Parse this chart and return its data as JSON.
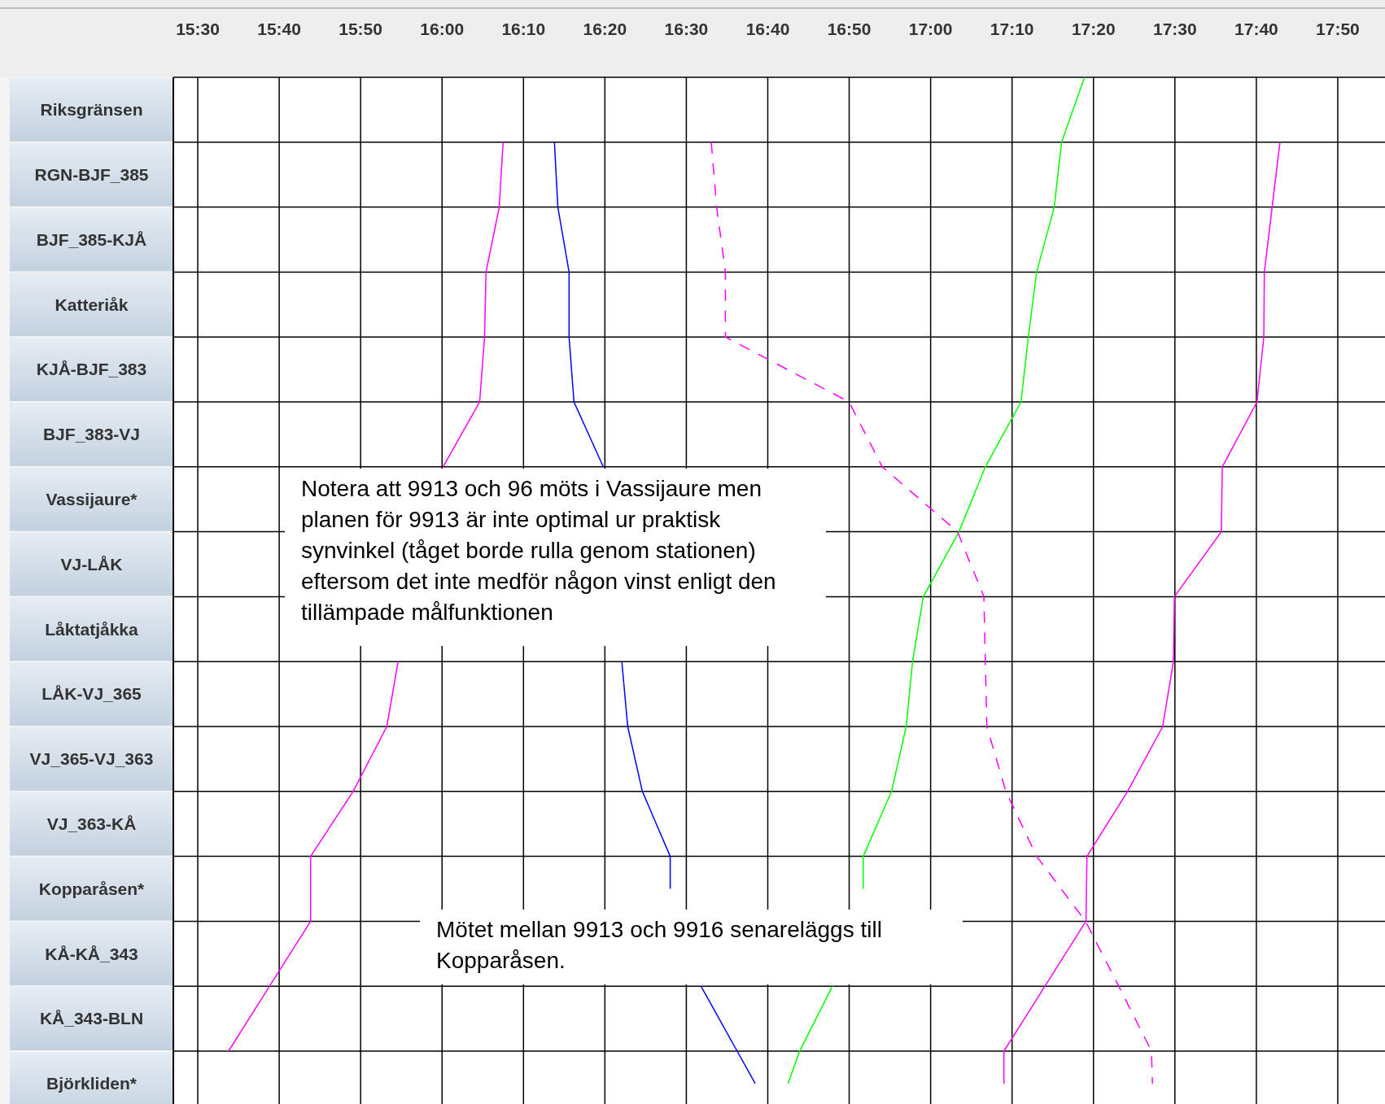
{
  "chart_data": {
    "type": "line",
    "orientation": "horizontal",
    "xlim": [
      15.45,
      17.93
    ],
    "xticks": [
      {
        "value": 15.5,
        "label": "15:30"
      },
      {
        "value": 15.6667,
        "label": "15:40"
      },
      {
        "value": 15.8333,
        "label": "15:50"
      },
      {
        "value": 16,
        "label": "16:00"
      },
      {
        "value": 16.1667,
        "label": "16:10"
      },
      {
        "value": 16.3333,
        "label": "16:20"
      },
      {
        "value": 16.5,
        "label": "16:30"
      },
      {
        "value": 16.6667,
        "label": "16:40"
      },
      {
        "value": 16.8333,
        "label": "16:50"
      },
      {
        "value": 17,
        "label": "17:00"
      },
      {
        "value": 17.1667,
        "label": "17:10"
      },
      {
        "value": 17.3333,
        "label": "17:20"
      },
      {
        "value": 17.5,
        "label": "17:30"
      },
      {
        "value": 17.6667,
        "label": "17:40"
      },
      {
        "value": 17.8333,
        "label": "17:50"
      }
    ],
    "categories": [
      null,
      "Riksgränsen",
      null,
      "RGN-BJF_385",
      null,
      "BJF_385-KJÅ",
      null,
      "Katteriåk",
      null,
      "KJÅ-BJF_383",
      null,
      "BJF_383-VJ",
      null,
      "Vassijaure*",
      null,
      "VJ-LÅK",
      null,
      "Låktatjåkka",
      null,
      "LÅK-VJ_365",
      null,
      "VJ_365-VJ_363",
      null,
      "VJ_363-KÅ",
      null,
      "Kopparåsen*",
      null,
      "KÅ-KÅ_343",
      null,
      "KÅ_343-BLN",
      null,
      "Björkliden*"
    ],
    "grid": true,
    "series": [
      {
        "color": "#ff00ff",
        "line_style": "solid",
        "values": [
          null,
          null,
          16.125,
          null,
          16.117,
          null,
          16.09,
          null,
          16.087,
          null,
          16.077,
          null,
          16.002,
          null,
          null,
          null,
          null,
          null,
          null,
          null,
          null,
          null,
          null,
          null,
          null,
          null,
          null,
          null,
          null,
          null,
          null,
          null
        ]
      },
      {
        "color": "#ff00ff",
        "line_style": "solid",
        "values": [
          null,
          null,
          null,
          null,
          null,
          null,
          null,
          null,
          null,
          null,
          null,
          null,
          null,
          null,
          null,
          null,
          null,
          null,
          15.91,
          null,
          15.887,
          null,
          15.818,
          null,
          15.731,
          null,
          15.731,
          null,
          15.647,
          null,
          15.563,
          null
        ]
      },
      {
        "color": "#0000ff",
        "line_style": "solid",
        "values": [
          null,
          null,
          16.23,
          null,
          16.237,
          null,
          16.26,
          null,
          16.26,
          null,
          16.27,
          null,
          16.33,
          null,
          null,
          null,
          null,
          null,
          null,
          null,
          null,
          null,
          null,
          null,
          null,
          null,
          null,
          null,
          null,
          null,
          null,
          null
        ]
      },
      {
        "color": "#0000ff",
        "line_style": "solid",
        "values": [
          null,
          null,
          null,
          null,
          null,
          null,
          null,
          null,
          null,
          null,
          null,
          null,
          null,
          null,
          null,
          null,
          null,
          null,
          16.368,
          null,
          16.38,
          null,
          16.41,
          null,
          16.467,
          16.467,
          null,
          null,
          null,
          null,
          null,
          null
        ]
      },
      {
        "color": "#0000ff",
        "line_style": "solid",
        "values": [
          null,
          null,
          null,
          null,
          null,
          null,
          null,
          null,
          null,
          null,
          null,
          null,
          null,
          null,
          null,
          null,
          null,
          null,
          null,
          null,
          null,
          null,
          null,
          null,
          null,
          null,
          null,
          null,
          16.53,
          null,
          16.604,
          16.641
        ]
      },
      {
        "color": "#00ff00",
        "line_style": "solid",
        "values": [
          17.315,
          null,
          17.268,
          null,
          17.253,
          null,
          17.217,
          null,
          17.2,
          null,
          17.185,
          null,
          17.112,
          null,
          17.058,
          null,
          16.985,
          null,
          16.963,
          null,
          16.95,
          null,
          16.92,
          null,
          16.862,
          16.862,
          null,
          null,
          null,
          null,
          null,
          null
        ]
      },
      {
        "color": "#00ff00",
        "line_style": "solid",
        "values": [
          null,
          null,
          null,
          null,
          null,
          null,
          null,
          null,
          null,
          null,
          null,
          null,
          null,
          null,
          null,
          null,
          null,
          null,
          null,
          null,
          null,
          null,
          null,
          null,
          null,
          null,
          null,
          null,
          16.799,
          null,
          16.732,
          16.708
        ]
      },
      {
        "color": "#ff00ff",
        "line_style": "dashed",
        "values": [
          null,
          null,
          16.551,
          null,
          16.562,
          null,
          16.58,
          null,
          16.58,
          null,
          16.833,
          null,
          16.901,
          null,
          17.055,
          null,
          17.109,
          null,
          17.112,
          null,
          17.115,
          null,
          17.154,
          null,
          17.217,
          null,
          17.317,
          null,
          17.385,
          null,
          17.452,
          17.454
        ]
      },
      {
        "color": "#ff00ff",
        "line_style": "solid",
        "values": [
          null,
          null,
          17.715,
          null,
          17.699,
          null,
          17.683,
          null,
          17.682,
          null,
          17.668,
          null,
          17.597,
          null,
          17.595,
          null,
          17.499,
          null,
          17.497,
          null,
          17.475,
          null,
          17.403,
          null,
          17.32,
          null,
          17.318,
          null,
          17.234,
          null,
          17.15,
          17.15
        ]
      }
    ],
    "annotations": [
      "Notera att 9913 och 96 möts i Vassijaure men planen för 9913 är inte optimal ur praktisk synvinkel (tåget borde rulla genom stationen) eftersom det inte medför någon vinst enligt den tillämpade målfunktionen",
      "Mötet mellan 9913 och 9916 senareläggs till Kopparåsen."
    ]
  }
}
